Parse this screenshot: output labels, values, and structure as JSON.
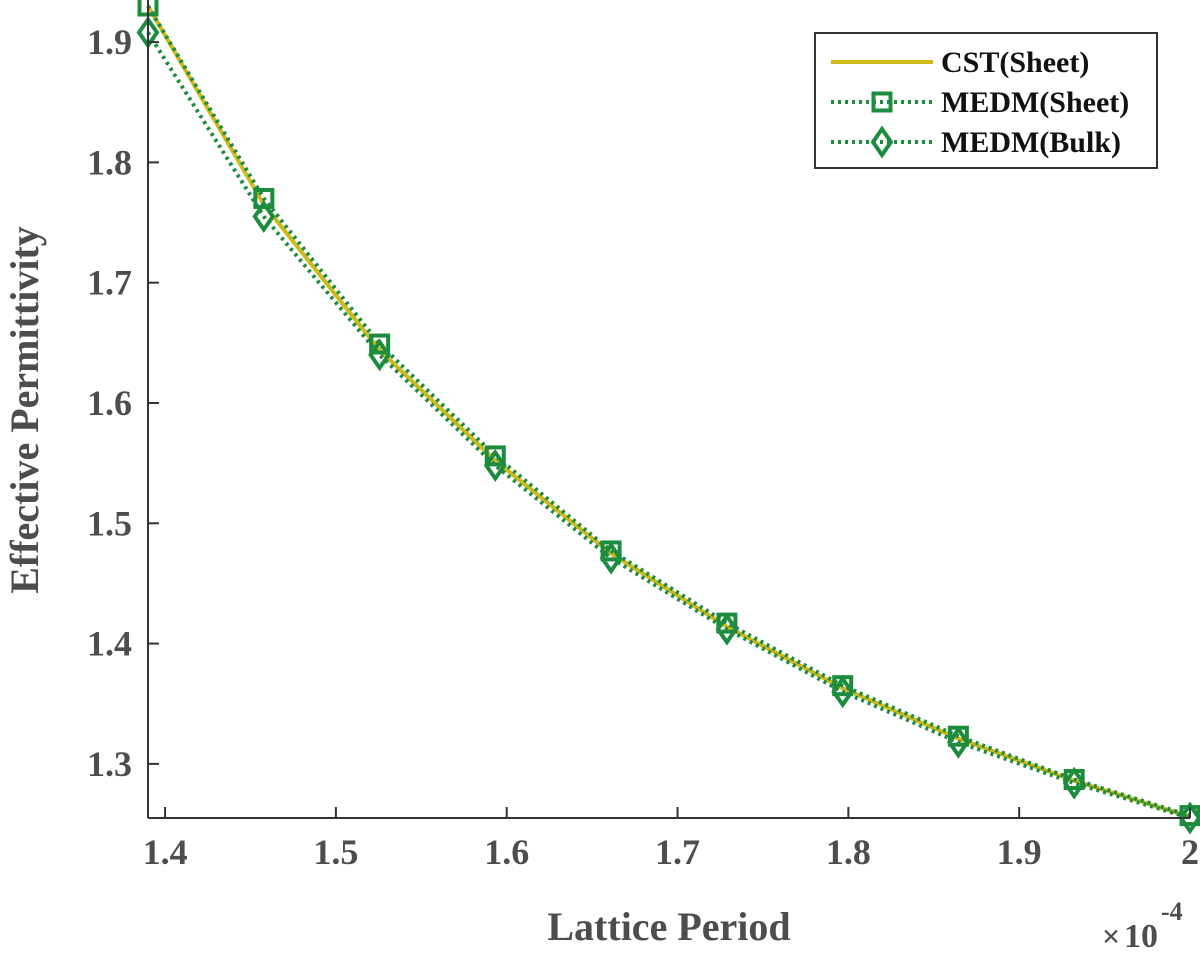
{
  "chart_data": {
    "type": "line",
    "xlabel": "Lattice Period",
    "ylabel": "Effective Permittivity",
    "x_exponent_label": {
      "times": "×",
      "base": "10",
      "exp": "-4"
    },
    "x_scale_factor": 0.0001,
    "xlim": [
      1.39,
      2.0
    ],
    "ylim": [
      1.255,
      1.935
    ],
    "x_ticks": [
      1.4,
      1.5,
      1.6,
      1.7,
      1.8,
      1.9,
      2.0
    ],
    "x_tick_labels": [
      "1.4",
      "1.5",
      "1.6",
      "1.7",
      "1.8",
      "1.9",
      "2"
    ],
    "y_ticks": [
      1.3,
      1.4,
      1.5,
      1.6,
      1.7,
      1.8,
      1.9
    ],
    "y_tick_labels": [
      "1.3",
      "1.4",
      "1.5",
      "1.6",
      "1.7",
      "1.8",
      "1.9"
    ],
    "grid": false,
    "legend_position": "top-right",
    "x": [
      1.39,
      1.4578,
      1.5256,
      1.5933,
      1.6611,
      1.7289,
      1.7967,
      1.8644,
      1.9322,
      2.0
    ],
    "series": [
      {
        "name": "CST(Sheet)",
        "color": "#cfba1c",
        "line": "solid",
        "marker": "none",
        "values": [
          1.93,
          1.765,
          1.644,
          1.552,
          1.475,
          1.414,
          1.363,
          1.321,
          1.286,
          1.256
        ]
      },
      {
        "name": "MEDM(Sheet)",
        "color": "#1e8c3e",
        "line": "dotted",
        "marker": "square",
        "values": [
          1.93,
          1.77,
          1.649,
          1.556,
          1.477,
          1.417,
          1.365,
          1.323,
          1.287,
          1.257
        ]
      },
      {
        "name": "MEDM(Bulk)",
        "color": "#1e8c3e",
        "line": "dotted",
        "marker": "diamond",
        "values": [
          1.908,
          1.755,
          1.64,
          1.548,
          1.471,
          1.412,
          1.36,
          1.318,
          1.284,
          1.255
        ]
      }
    ]
  }
}
